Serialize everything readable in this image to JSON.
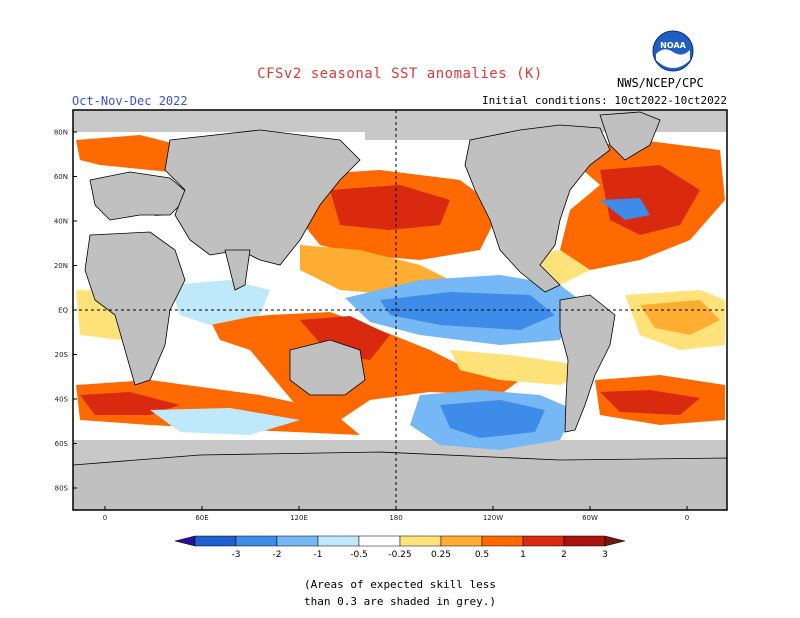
{
  "header": {
    "title": "CFSv2 seasonal SST anomalies (K)",
    "season": "Oct-Nov-Dec 2022",
    "initial_conditions": "Initial conditions: 10ct2022-10ct2022",
    "agency": "NWS/NCEP/CPC",
    "logo_text": "NOAA"
  },
  "map": {
    "projection": "equirectangular",
    "lat_labels": [
      "80N",
      "60N",
      "40N",
      "20N",
      "EQ",
      "20S",
      "40S",
      "60S",
      "80S"
    ],
    "lon_labels": [
      "0",
      "60E",
      "120E",
      "180",
      "120W",
      "60W",
      "0"
    ],
    "land_color": "#c0c0c0",
    "low_skill_color": "#c8c8c8",
    "ocean_neutral_color": "#ffffff"
  },
  "colorbar": {
    "labels": [
      "-3",
      "-2",
      "-1",
      "-0.5",
      "-0.25",
      "0.25",
      "0.5",
      "1",
      "2",
      "3"
    ],
    "colors": [
      "#2a0f9a",
      "#1e5fcf",
      "#3f8bea",
      "#76b8f5",
      "#bfe8fb",
      "#ffffff",
      "#ffe27a",
      "#ffad33",
      "#ff6a00",
      "#d92a0f",
      "#a8130c",
      "#6e1a0b"
    ]
  },
  "footnote": [
    "(Areas of expected skill less",
    "than 0.3 are shaded in grey.)"
  ]
}
